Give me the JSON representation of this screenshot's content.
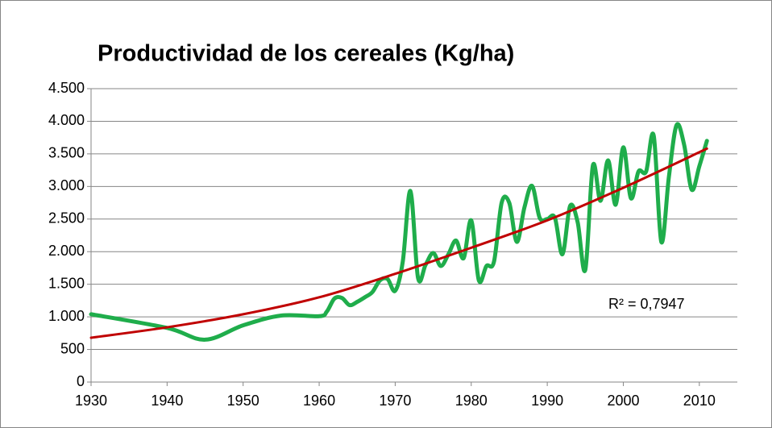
{
  "chart_data": {
    "type": "line",
    "title": "Productividad de los cereales (Kg/ha)",
    "annotation": "R² = 0,7947",
    "xlim": [
      1930,
      2015
    ],
    "xticks": [
      1930,
      1940,
      1950,
      1960,
      1970,
      1980,
      1990,
      2000,
      2010
    ],
    "ylim": [
      0,
      4500
    ],
    "yticks": [
      0,
      500,
      {
        "value": 1000,
        "label": "1.000"
      },
      {
        "value": 1500,
        "label": "1.500"
      },
      {
        "value": 2000,
        "label": "2.000"
      },
      {
        "value": 2500,
        "label": "2.500"
      },
      {
        "value": 3000,
        "label": "3.000"
      },
      {
        "value": 3500,
        "label": "3.500"
      },
      {
        "value": 4000,
        "label": "4.000"
      },
      {
        "value": 4500,
        "label": "4.500"
      }
    ],
    "grid": true,
    "series": [
      {
        "color": "#1fad4b",
        "smooth": true,
        "x": [
          1930,
          1940,
          1945,
          1950,
          1955,
          1960,
          1961,
          1962,
          1963,
          1964,
          1965,
          1966,
          1967,
          1968,
          1969,
          1970,
          1971,
          1972,
          1973,
          1974,
          1975,
          1976,
          1977,
          1978,
          1979,
          1980,
          1981,
          1982,
          1983,
          1984,
          1985,
          1986,
          1987,
          1988,
          1989,
          1990,
          1991,
          1992,
          1993,
          1994,
          1995,
          1996,
          1997,
          1998,
          1999,
          2000,
          2001,
          2002,
          2003,
          2004,
          2005,
          2006,
          2007,
          2008,
          2009,
          2010,
          2011
        ],
        "values": [
          1040,
          830,
          650,
          870,
          1020,
          1010,
          1080,
          1280,
          1290,
          1180,
          1230,
          1300,
          1380,
          1560,
          1580,
          1400,
          1850,
          2930,
          1600,
          1800,
          1980,
          1780,
          1960,
          2170,
          1900,
          2480,
          1560,
          1780,
          1850,
          2750,
          2750,
          2150,
          2680,
          3010,
          2520,
          2500,
          2520,
          1960,
          2700,
          2450,
          1720,
          3320,
          2780,
          3400,
          2720,
          3600,
          2820,
          3230,
          3230,
          3780,
          2150,
          3150,
          3940,
          3640,
          2950,
          3310,
          3700
        ]
      },
      {
        "color": "#c00000",
        "smooth": true,
        "x": [
          1930,
          1940,
          1950,
          1960,
          1970,
          1980,
          1990,
          2000,
          2011
        ],
        "values": [
          680,
          840,
          1040,
          1300,
          1660,
          2060,
          2480,
          2980,
          3580
        ]
      }
    ]
  }
}
